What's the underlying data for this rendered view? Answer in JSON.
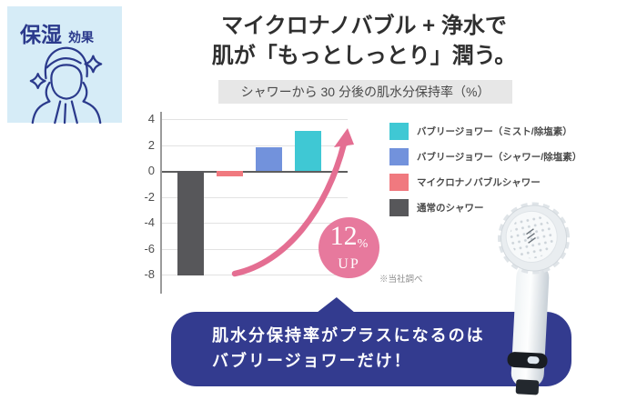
{
  "colors": {
    "badge_bg": "#d6ecf7",
    "navy": "#2b3a8c",
    "title_bar_bg": "#e7e7e7",
    "accent_pink": "#e7799d",
    "bubble_bg": "#333b8f"
  },
  "badge": {
    "title": "保湿",
    "subtitle": "効果"
  },
  "icons": {
    "badge_icon": "moisturized-face-icon",
    "sparkles": "sparkle-icon",
    "product_image": "shower-head-product"
  },
  "headline": {
    "line1": "マイクロナノバブル + 浄水で",
    "line2": "肌が「もっとしっとり」潤う。"
  },
  "chart_data": {
    "type": "bar",
    "title": "シャワーから 30 分後の肌水分保持率（%）",
    "xlabel": "",
    "ylabel": "肌水分保持率（%）",
    "categories": [
      "通常のシャワー",
      "マイクロナノバブルシャワー",
      "バブリージョワー（シャワー/除塩素）",
      "バブリージョワー（ミスト/除塩素）"
    ],
    "values": [
      -8.1,
      -0.4,
      1.8,
      3.1
    ],
    "bar_colors": [
      "#57575a",
      "#f0797f",
      "#7292dc",
      "#3fc8d4"
    ],
    "yticks": [
      4,
      2,
      0,
      -2,
      -4,
      -6,
      -8
    ],
    "ylim": [
      -9,
      4.5
    ],
    "grid": true,
    "legend_position": "right",
    "legend": [
      {
        "label": "バブリージョワー（ミスト/除塩素）",
        "color": "#3fc8d4"
      },
      {
        "label": "バブリージョワー（シャワー/除塩素）",
        "color": "#7292dc"
      },
      {
        "label": "マイクロナノバブルシャワー",
        "color": "#f0797f"
      },
      {
        "label": "通常のシャワー",
        "color": "#57575a"
      }
    ],
    "annotation": {
      "value": "12",
      "unit": "%",
      "word": "UP"
    },
    "note": "※当社調べ"
  },
  "callout": {
    "line1": "肌水分保持率がプラスになるのは",
    "line2": "バブリージョワーだけ！"
  }
}
